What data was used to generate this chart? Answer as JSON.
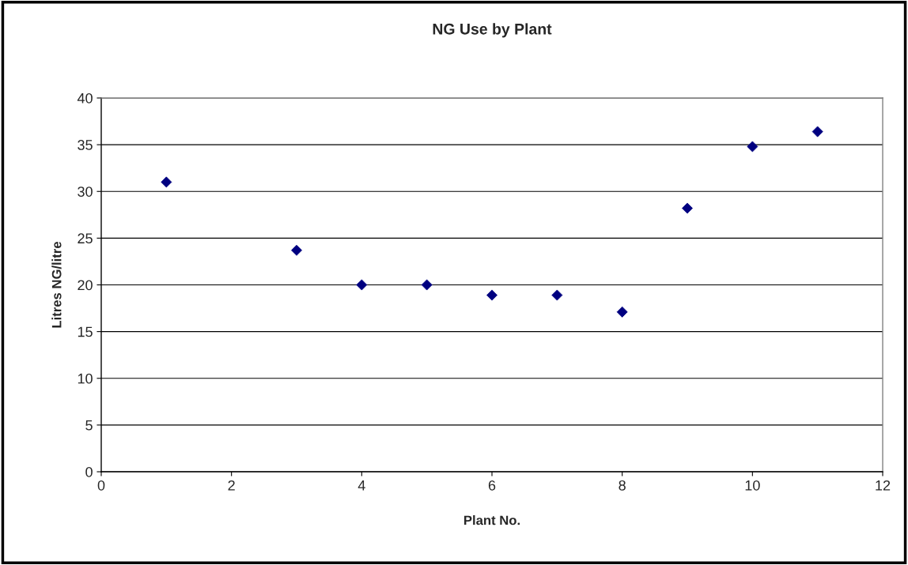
{
  "chart_data": {
    "type": "scatter",
    "title": "NG Use by Plant",
    "xlabel": "Plant No.",
    "ylabel": "Litres NG/litre",
    "x": [
      1,
      3,
      4,
      5,
      6,
      7,
      8,
      9,
      10,
      11
    ],
    "series": [
      {
        "color": "#000080",
        "values": [
          31.0,
          23.7,
          20.0,
          20.0,
          18.9,
          18.9,
          17.1,
          28.2,
          34.8,
          36.4
        ]
      }
    ],
    "xlim": [
      0,
      12
    ],
    "xticks": [
      0,
      2,
      4,
      6,
      8,
      10,
      12
    ],
    "ylim": [
      0,
      40
    ],
    "yticks": [
      0,
      5,
      10,
      15,
      20,
      25,
      30,
      35,
      40
    ],
    "grid": "y",
    "marker": "diamond",
    "legend": false
  }
}
